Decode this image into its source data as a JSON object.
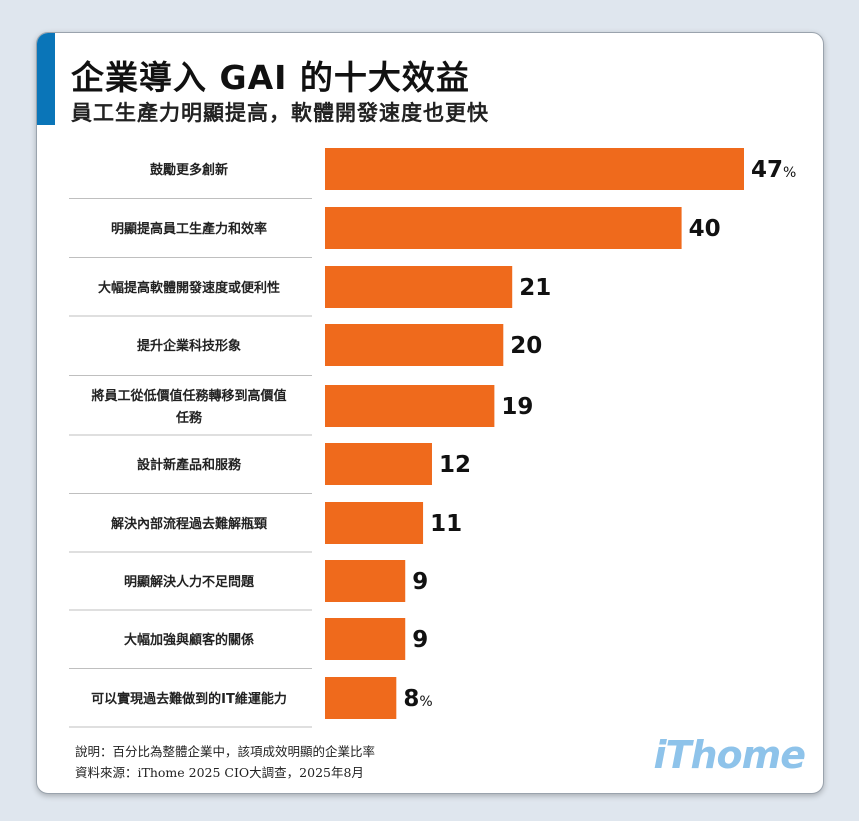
{
  "header": {
    "title": "企業導入 GAI 的十大效益",
    "subtitle": "員工生產力明顯提高，軟體開發速度也更快"
  },
  "chart_data": {
    "type": "bar",
    "orientation": "horizontal",
    "categories": [
      "鼓勵更多創新",
      "明顯提高員工生產力和效率",
      "大幅提高軟體開發速度或便利性",
      "提升企業科技形象",
      "將員工從低價值任務轉移到高價值任務",
      "設計新產品和服務",
      "解決內部流程過去難解瓶頸",
      "明顯解決人力不足問題",
      "大幅加強與顧客的關係",
      "可以實現過去難做到的IT維運能力"
    ],
    "category_lines": [
      [
        "鼓勵更多創新"
      ],
      [
        "明顯提高員工生產力和效率"
      ],
      [
        "大幅提高軟體開發速度或便利性"
      ],
      [
        "提升企業科技形象"
      ],
      [
        "將員工從低價值任務轉移到高價值",
        "任務"
      ],
      [
        "設計新產品和服務"
      ],
      [
        "解決內部流程過去難解瓶頸"
      ],
      [
        "明顯解決人力不足問題"
      ],
      [
        "大幅加強與顧客的關係"
      ],
      [
        "可以實現過去難做到的IT維運能力"
      ]
    ],
    "values": [
      47,
      40,
      21,
      20,
      19,
      12,
      11,
      9,
      9,
      8
    ],
    "value_labels": [
      "47",
      "40",
      "21",
      "20",
      "19",
      "12",
      "11",
      "9",
      "9",
      "8"
    ],
    "unit_suffix": [
      "%",
      "",
      "",
      "",
      "",
      "",
      "",
      "",
      "",
      "%"
    ],
    "bar_color": "#ef6a1c",
    "xlim": [
      0,
      47
    ],
    "grid": false,
    "legend": "none"
  },
  "footer": {
    "note": "說明：百分比為整體企業中，該項成效明顯的企業比率",
    "source": "資料來源：iThome 2025 CIO大調查，2025年8月",
    "logo": "iThome"
  },
  "colors": {
    "accent": "#0a75b8",
    "bar": "#ef6a1c",
    "logo": "#8ec3ea"
  }
}
